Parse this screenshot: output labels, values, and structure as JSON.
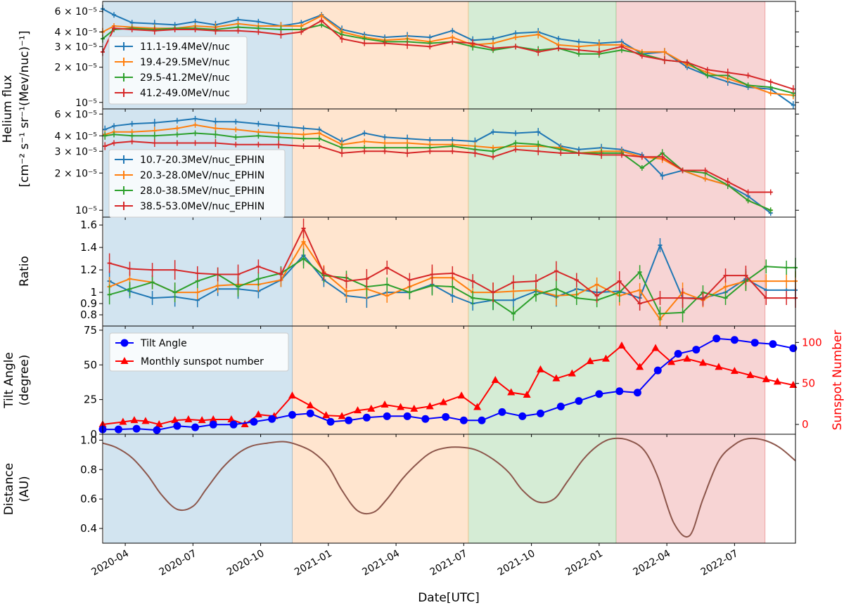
{
  "chart_data": {
    "type": "line",
    "x_axis": {
      "label": "Date[UTC]",
      "ticks": [
        "2020-04",
        "2020-07",
        "2020-10",
        "2021-01",
        "2021-04",
        "2021-07",
        "2021-10",
        "2022-01",
        "2022-04",
        "2022-07"
      ],
      "tick_months": [
        3,
        6,
        9,
        12,
        15,
        18,
        21,
        24,
        27,
        30
      ],
      "range_months": [
        2.0,
        32.7
      ]
    },
    "shaded_periods": [
      {
        "start": 2.05,
        "end": 10.4,
        "color": "#1f77b4"
      },
      {
        "start": 10.4,
        "end": 18.2,
        "color": "#ff7f0e"
      },
      {
        "start": 18.2,
        "end": 24.75,
        "color": "#2ca02c"
      },
      {
        "start": 24.75,
        "end": 31.35,
        "color": "#d62728"
      }
    ],
    "shared_ylabel": [
      "Helium flux",
      "[cm⁻² s⁻¹ sr⁻¹(Mev/nuc)⁻¹]"
    ],
    "panel1": {
      "scale": "log",
      "ylim": [
        8.8e-06,
        7.3e-05
      ],
      "tick_values": [
        6e-05,
        4e-05,
        3e-05,
        2e-05,
        1e-05
      ],
      "tick_labels": [
        "6 × 10⁻⁵",
        "4 × 10⁻⁵",
        "3 × 10⁻⁵",
        "2 × 10⁻⁵",
        "10⁻⁵"
      ],
      "x_months": [
        2.0,
        2.5,
        3.3,
        4.3,
        5.2,
        6.1,
        7.0,
        8.0,
        8.9,
        9.9,
        10.8,
        11.7,
        12.6,
        13.6,
        14.5,
        15.5,
        16.5,
        17.5,
        18.4,
        19.3,
        20.3,
        21.3,
        22.2,
        23.1,
        24.0,
        25.0,
        25.9,
        26.9,
        27.9,
        28.8,
        29.7,
        30.6,
        31.6,
        32.6
      ],
      "series": [
        {
          "name": "11.1-19.4MeV/nuc",
          "color": "#1f77b4",
          "values": [
            6.3e-05,
            5.6e-05,
            4.8e-05,
            4.7e-05,
            4.6e-05,
            4.9e-05,
            4.6e-05,
            5.1e-05,
            4.9e-05,
            4.5e-05,
            4.8e-05,
            5.6e-05,
            4.2e-05,
            3.8e-05,
            3.6e-05,
            3.7e-05,
            3.6e-05,
            4.1e-05,
            3.4e-05,
            3.5e-05,
            3.9e-05,
            4e-05,
            3.5e-05,
            3.3e-05,
            3.2e-05,
            3.3e-05,
            2.6e-05,
            2.7e-05,
            2e-05,
            1.7e-05,
            1.5e-05,
            1.35e-05,
            1.3e-05,
            9.5e-06
          ]
        },
        {
          "name": "19.4-29.5MeV/nuc",
          "color": "#ff7f0e",
          "values": [
            4e-05,
            4.5e-05,
            4.4e-05,
            4.3e-05,
            4.3e-05,
            4.5e-05,
            4.4e-05,
            4.7e-05,
            4.5e-05,
            4.5e-05,
            4.5e-05,
            5.5e-05,
            4e-05,
            3.6e-05,
            3.4e-05,
            3.5e-05,
            3.3e-05,
            3.6e-05,
            3.1e-05,
            3.2e-05,
            3.6e-05,
            3.8e-05,
            3.1e-05,
            3e-05,
            3.1e-05,
            3.1e-05,
            2.7e-05,
            2.7e-05,
            2.1e-05,
            1.8e-05,
            1.6e-05,
            1.4e-05,
            1.2e-05,
            1.15e-05
          ]
        },
        {
          "name": "29.5-41.2MeV/nuc",
          "color": "#2ca02c",
          "values": [
            3.5e-05,
            4.2e-05,
            4.3e-05,
            4.2e-05,
            4.3e-05,
            4.3e-05,
            4.2e-05,
            4.4e-05,
            4.3e-05,
            4.2e-05,
            4.2e-05,
            4.6e-05,
            3.8e-05,
            3.5e-05,
            3.3e-05,
            3.3e-05,
            3.2e-05,
            3.3e-05,
            3e-05,
            2.8e-05,
            3e-05,
            2.8e-05,
            2.9e-05,
            2.6e-05,
            2.6e-05,
            2.8e-05,
            2.6e-05,
            2.3e-05,
            2.2e-05,
            1.7e-05,
            1.7e-05,
            1.4e-05,
            1.35e-05,
            1.2e-05
          ]
        },
        {
          "name": "41.2-49.0MeV/nuc",
          "color": "#d62728",
          "values": [
            2.7e-05,
            4.3e-05,
            4.2e-05,
            4.1e-05,
            4.2e-05,
            4.2e-05,
            4.1e-05,
            4.1e-05,
            4e-05,
            3.8e-05,
            4e-05,
            5e-05,
            3.5e-05,
            3.2e-05,
            3.2e-05,
            3.1e-05,
            3e-05,
            3.3e-05,
            3.2e-05,
            2.9e-05,
            3e-05,
            2.7e-05,
            2.9e-05,
            2.8e-05,
            2.7e-05,
            3e-05,
            2.5e-05,
            2.3e-05,
            2.2e-05,
            1.9e-05,
            1.8e-05,
            1.7e-05,
            1.5e-05,
            1.3e-05
          ]
        }
      ]
    },
    "panel2": {
      "scale": "log",
      "ylim": [
        8.8e-06,
        6.6e-05
      ],
      "tick_values": [
        6e-05,
        4e-05,
        3e-05,
        2e-05,
        1e-05
      ],
      "tick_labels": [
        "6 × 10⁻⁵",
        "4 × 10⁻⁵",
        "3 × 10⁻⁵",
        "2 × 10⁻⁵",
        "10⁻⁵"
      ],
      "x_months": [
        2.1,
        2.5,
        3.3,
        4.3,
        5.3,
        6.1,
        7.0,
        7.9,
        8.9,
        9.8,
        10.9,
        11.6,
        12.6,
        13.6,
        14.5,
        15.5,
        16.5,
        17.5,
        18.5,
        19.3,
        20.3,
        21.3,
        22.3,
        23.1,
        24.1,
        25.0,
        25.9,
        26.8,
        27.7,
        28.7,
        29.7,
        30.6,
        31.6
      ],
      "series": [
        {
          "name": "10.7-20.3MeV/nuc_EPHIN",
          "color": "#1f77b4",
          "values": [
            4.5e-05,
            4.8e-05,
            5e-05,
            5.1e-05,
            5.3e-05,
            5.5e-05,
            5.2e-05,
            5.2e-05,
            5e-05,
            4.8e-05,
            4.6e-05,
            4.5e-05,
            3.6e-05,
            4.2e-05,
            3.9e-05,
            3.8e-05,
            3.7e-05,
            3.7e-05,
            3.6e-05,
            4.3e-05,
            4.2e-05,
            4.3e-05,
            3.3e-05,
            3.1e-05,
            3.2e-05,
            3.1e-05,
            2.8e-05,
            1.9e-05,
            2.1e-05,
            1.8e-05,
            1.6e-05,
            1.3e-05,
            9.5e-06
          ]
        },
        {
          "name": "20.3-28.0MeV/nuc_EPHIN",
          "color": "#ff7f0e",
          "values": [
            4.1e-05,
            4.3e-05,
            4.3e-05,
            4.4e-05,
            4.6e-05,
            4.9e-05,
            4.6e-05,
            4.5e-05,
            4.3e-05,
            4.2e-05,
            4.1e-05,
            4.2e-05,
            3.4e-05,
            3.6e-05,
            3.5e-05,
            3.5e-05,
            3.4e-05,
            3.4e-05,
            3.3e-05,
            3.2e-05,
            3.3e-05,
            3.3e-05,
            3.2e-05,
            2.9e-05,
            3e-05,
            3e-05,
            2.7e-05,
            2.6e-05,
            2.1e-05,
            1.8e-05,
            1.6e-05,
            1.2e-05,
            1e-05
          ]
        },
        {
          "name": "28.0-38.5MeV/nuc_EPHIN",
          "color": "#2ca02c",
          "values": [
            4e-05,
            4.1e-05,
            4e-05,
            4e-05,
            4.1e-05,
            4.2e-05,
            4.1e-05,
            3.9e-05,
            4e-05,
            3.9e-05,
            3.8e-05,
            3.8e-05,
            3.2e-05,
            3.2e-05,
            3.2e-05,
            3.2e-05,
            3.2e-05,
            3.3e-05,
            3.1e-05,
            3e-05,
            3.5e-05,
            3.4e-05,
            3.1e-05,
            2.9e-05,
            2.9e-05,
            2.9e-05,
            2.2e-05,
            2.9e-05,
            2.1e-05,
            2e-05,
            1.6e-05,
            1.2e-05,
            1e-05
          ]
        },
        {
          "name": "38.5-53.0MeV/nuc_EPHIN",
          "color": "#d62728",
          "values": [
            3.3e-05,
            3.5e-05,
            3.6e-05,
            3.5e-05,
            3.5e-05,
            3.5e-05,
            3.5e-05,
            3.4e-05,
            3.4e-05,
            3.4e-05,
            3.3e-05,
            3.3e-05,
            2.9e-05,
            3e-05,
            3e-05,
            2.9e-05,
            3e-05,
            3e-05,
            2.9e-05,
            2.7e-05,
            3.1e-05,
            3e-05,
            2.9e-05,
            2.9e-05,
            2.8e-05,
            2.8e-05,
            2.7e-05,
            2.7e-05,
            2.1e-05,
            2.1e-05,
            1.7e-05,
            1.4e-05,
            1.4e-05
          ]
        }
      ]
    },
    "panel3": {
      "ylabel": "Ratio",
      "ylim": [
        0.7,
        1.67
      ],
      "tick_values": [
        1.6,
        1.4,
        1.2,
        1.0,
        0.9,
        0.8
      ],
      "tick_labels": [
        "1.6",
        "1.4",
        "1.2",
        "1",
        "0.9",
        "0.8"
      ],
      "x_months": [
        2.3,
        3.2,
        4.2,
        5.2,
        6.2,
        7.1,
        8.0,
        8.9,
        9.9,
        10.9,
        11.8,
        12.8,
        13.7,
        14.6,
        15.6,
        16.6,
        17.5,
        18.4,
        19.3,
        20.2,
        21.2,
        22.1,
        23.0,
        23.9,
        24.9,
        25.8,
        26.7,
        27.7,
        28.6,
        29.6,
        30.5,
        31.4,
        32.3,
        32.7
      ],
      "series": [
        {
          "name": "ratio-blue",
          "color": "#1f77b4",
          "values": [
            1.1,
            1.01,
            0.95,
            0.96,
            0.93,
            1.03,
            1.03,
            1.01,
            1.11,
            1.33,
            1.11,
            0.97,
            0.95,
            1.0,
            1.0,
            1.07,
            0.97,
            0.9,
            0.93,
            0.93,
            1.01,
            0.96,
            1.03,
            1.0,
            1.01,
            0.95,
            1.42,
            0.95,
            0.95,
            1.0,
            1.12,
            1.02,
            1.02,
            1.02
          ]
        },
        {
          "name": "ratio-orange",
          "color": "#ff7f0e",
          "values": [
            1.05,
            1.12,
            1.09,
            1.0,
            1.0,
            1.06,
            1.07,
            1.07,
            1.11,
            1.45,
            1.18,
            1.01,
            1.03,
            0.97,
            1.05,
            1.13,
            1.13,
            1.0,
            1.0,
            1.01,
            1.02,
            0.97,
            0.98,
            1.07,
            0.97,
            1.02,
            0.76,
            1.0,
            0.93,
            1.05,
            1.1,
            1.1,
            1.1,
            1.1
          ]
        },
        {
          "name": "ratio-green",
          "color": "#2ca02c",
          "values": [
            0.98,
            1.03,
            1.09,
            1.0,
            1.1,
            1.16,
            1.05,
            1.12,
            1.17,
            1.3,
            1.15,
            1.13,
            1.05,
            1.07,
            1.0,
            1.06,
            1.05,
            0.95,
            0.93,
            0.81,
            0.98,
            1.03,
            0.95,
            0.93,
            1.0,
            1.18,
            0.81,
            0.82,
            1.0,
            0.95,
            1.1,
            1.23,
            1.22,
            1.22
          ]
        },
        {
          "name": "ratio-red",
          "color": "#d62728",
          "values": [
            1.26,
            1.21,
            1.2,
            1.2,
            1.17,
            1.16,
            1.16,
            1.23,
            1.16,
            1.57,
            1.17,
            1.1,
            1.12,
            1.22,
            1.11,
            1.16,
            1.17,
            1.1,
            1.0,
            1.09,
            1.1,
            1.19,
            1.11,
            0.97,
            1.1,
            0.9,
            0.95,
            0.95,
            0.94,
            1.15,
            1.15,
            0.95,
            0.95,
            0.95
          ]
        }
      ]
    },
    "panel4": {
      "ylabel_left": [
        "Tilt Angle",
        "(degree)"
      ],
      "ylabel_right": "Sunspot Number",
      "ylim_left": [
        0,
        78
      ],
      "ylim_right": [
        -12,
        120
      ],
      "left_ticks": [
        0,
        25,
        50,
        75
      ],
      "right_ticks": [
        0,
        50,
        100
      ],
      "legend": [
        "Tilt Angle",
        "Monthly sunspot number"
      ],
      "tilt_angle": {
        "color": "#0000ff",
        "x_months": [
          2.0,
          2.7,
          3.5,
          4.4,
          5.3,
          6.1,
          6.9,
          7.8,
          8.7,
          9.5,
          10.4,
          11.2,
          12.1,
          12.9,
          13.7,
          14.6,
          15.5,
          16.3,
          17.2,
          18.0,
          18.8,
          19.7,
          20.6,
          21.4,
          22.3,
          23.1,
          24.0,
          24.9,
          25.7,
          26.6,
          27.5,
          28.3,
          29.2,
          30.0,
          30.9,
          31.7,
          32.6
        ],
        "values": [
          3.5,
          3.5,
          4.0,
          3.0,
          6.0,
          5.0,
          7.0,
          7.0,
          9.0,
          11.0,
          14.0,
          15.0,
          9.0,
          10.0,
          12.0,
          13.0,
          13.0,
          11.0,
          12.5,
          10.0,
          10.0,
          16.0,
          13.0,
          15.0,
          20.0,
          24.0,
          29.0,
          31.0,
          30.0,
          46.0,
          58.0,
          61.0,
          69.0,
          68.0,
          66.0,
          65.0,
          62.0
        ]
      },
      "sunspot": {
        "color": "#ff0000",
        "x_months": [
          2.0,
          2.9,
          3.4,
          3.9,
          4.5,
          5.2,
          5.8,
          6.4,
          6.9,
          7.7,
          8.3,
          8.9,
          9.6,
          10.4,
          11.2,
          11.9,
          12.6,
          13.3,
          13.9,
          14.5,
          15.2,
          15.8,
          16.5,
          17.1,
          17.9,
          18.6,
          19.4,
          20.1,
          20.8,
          21.4,
          22.1,
          22.8,
          23.6,
          24.3,
          25.0,
          25.8,
          26.5,
          27.2,
          27.9,
          28.6,
          29.3,
          30.0,
          30.7,
          31.4,
          31.9,
          32.6
        ],
        "values": [
          0,
          3,
          5,
          4,
          0,
          5,
          6,
          5,
          6,
          6,
          0,
          12,
          10,
          35,
          23,
          11,
          10,
          17,
          19,
          24,
          21,
          19,
          22,
          27,
          35,
          21,
          54,
          39,
          36,
          67,
          56,
          62,
          77,
          80,
          96,
          70,
          93,
          76,
          80,
          75,
          70,
          65,
          60,
          55,
          52,
          48
        ]
      }
    },
    "panel5": {
      "ylabel": [
        "Distance",
        "(AU)"
      ],
      "ylim": [
        0.3,
        1.04
      ],
      "tick_values": [
        1.0,
        0.8,
        0.6,
        0.4
      ],
      "tick_labels": [
        "1.0",
        "0.8",
        "0.6",
        "0.4"
      ],
      "color": "#8c564b",
      "x_months": [
        2.0,
        2.6,
        3.3,
        4.0,
        4.6,
        5.3,
        6.0,
        6.6,
        7.3,
        8.0,
        8.6,
        9.3,
        10.0,
        10.6,
        11.3,
        12.0,
        12.6,
        13.3,
        14.0,
        14.6,
        15.3,
        16.0,
        16.6,
        17.3,
        18.0,
        18.6,
        19.3,
        20.0,
        20.6,
        21.3,
        22.0,
        22.6,
        23.3,
        24.0,
        24.6,
        25.3,
        26.0,
        26.6,
        27.3,
        28.0,
        28.6,
        29.3,
        30.0,
        30.6,
        31.3,
        32.0,
        32.7
      ],
      "values": [
        0.98,
        0.95,
        0.88,
        0.76,
        0.63,
        0.53,
        0.55,
        0.67,
        0.81,
        0.91,
        0.96,
        0.98,
        0.99,
        0.97,
        0.92,
        0.82,
        0.66,
        0.52,
        0.51,
        0.6,
        0.74,
        0.85,
        0.92,
        0.95,
        0.95,
        0.93,
        0.87,
        0.78,
        0.66,
        0.58,
        0.6,
        0.72,
        0.87,
        0.97,
        1.01,
        1.0,
        0.93,
        0.75,
        0.44,
        0.35,
        0.6,
        0.86,
        0.97,
        1.01,
        1.0,
        0.95,
        0.86
      ]
    }
  }
}
